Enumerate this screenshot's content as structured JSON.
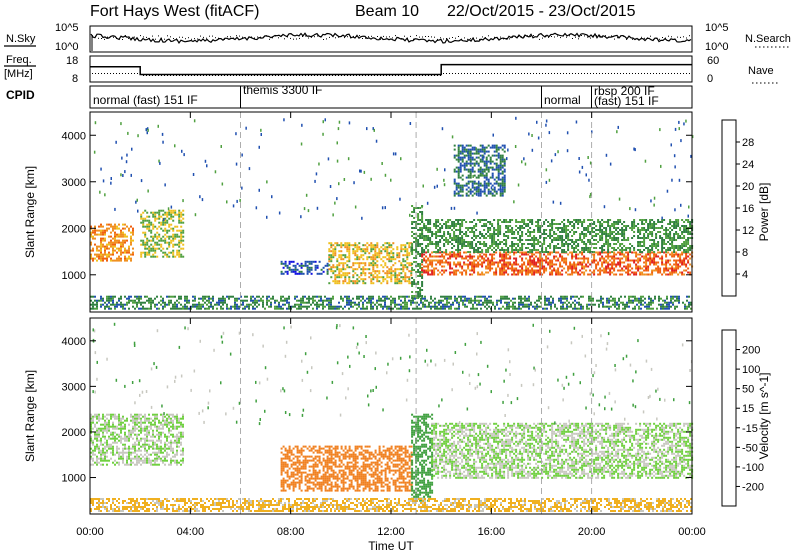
{
  "header": {
    "title": "Fort Hays West (fitACF)",
    "beam": "Beam 10",
    "dates": "22/Oct/2015 - 23/Oct/2015"
  },
  "top_panels": {
    "nsky_label": "N.Sky",
    "nsky_top": "10^5",
    "nsky_bottom": "10^0",
    "nsearch_label": "N.Search",
    "nsearch_top": "10^5",
    "nsearch_bottom": "10^0",
    "freq_label": "Freq.",
    "freq_unit": "[MHz]",
    "freq_top": "18",
    "freq_bottom": "8",
    "nave_label": "Nave",
    "nave_top": "60",
    "nave_bottom": "0",
    "cpid_label": "CPID"
  },
  "cpid_segments": [
    {
      "start_h": 0,
      "end_h": 6,
      "label": "normal (fast) 151 IF"
    },
    {
      "start_h": 6,
      "end_h": 18,
      "label": "themis 3300 IF"
    },
    {
      "start_h": 18,
      "end_h": 20,
      "label": "normal"
    },
    {
      "start_h": 20,
      "end_h": 24,
      "label": "rbsp 200 IF"
    },
    {
      "start_h": 20,
      "end_h": 24,
      "label": "(fast) 151 IF"
    }
  ],
  "axes": {
    "xlabel": "Time UT",
    "x_ticks": [
      "00:00",
      "04:00",
      "08:00",
      "12:00",
      "16:00",
      "20:00",
      "00:00"
    ],
    "x_tick_hours": [
      0,
      4,
      8,
      12,
      16,
      20,
      24
    ],
    "ylabel": "Slant Range [km]",
    "y_ticks": [
      1000,
      2000,
      3000,
      4000
    ],
    "ylim": [
      200,
      4500
    ],
    "xlim_hours": [
      0,
      24
    ]
  },
  "power_scale": {
    "label": "Power [dB]",
    "ticks": [
      "4",
      "8",
      "12",
      "16",
      "20",
      "24",
      "28"
    ],
    "colors": [
      "#1010e0",
      "#2050b0",
      "#308040",
      "#50a040",
      "#f0c020",
      "#f09020",
      "#f06010",
      "#e02020"
    ]
  },
  "velocity_scale": {
    "label": "Velocity [m s^-1]",
    "ticks": [
      "200",
      "100",
      "50",
      "15",
      "-15",
      "-50",
      "-100",
      "-200"
    ],
    "colors": [
      "#2030b0",
      "#207040",
      "#40a040",
      "#70d040",
      "#c8c8c0",
      "#f0b020",
      "#f08020",
      "#f04010",
      "#e01010"
    ]
  },
  "chart_data": {
    "type": "heatmap",
    "title": "Fort Hays West (fitACF)",
    "xlabel": "Time UT",
    "ylabel": "Slant Range [km]",
    "xlim_hours": [
      0,
      24
    ],
    "ylim_km": [
      200,
      4500
    ],
    "nsky_trace": {
      "hours": [
        0,
        6,
        12,
        13,
        18,
        24
      ],
      "level": "around 10^4"
    },
    "freq_mhz": [
      {
        "start_h": 0,
        "end_h": 2,
        "value": 14
      },
      {
        "start_h": 2,
        "end_h": 14,
        "value": 10.5
      },
      {
        "start_h": 14,
        "end_h": 24,
        "value": 15
      }
    ],
    "power_features": [
      {
        "start_h": 0,
        "end_h": 1.7,
        "range_start_km": 1300,
        "range_end_km": 2100,
        "power_db": 22
      },
      {
        "start_h": 2,
        "end_h": 3.7,
        "range_start_km": 1400,
        "range_end_km": 2400,
        "power_db": 16
      },
      {
        "start_h": 7.6,
        "end_h": 9.5,
        "range_start_km": 1000,
        "range_end_km": 1300,
        "power_db": 6
      },
      {
        "start_h": 9.5,
        "end_h": 12.8,
        "range_start_km": 800,
        "range_end_km": 1700,
        "power_db": 18
      },
      {
        "start_h": 12.8,
        "end_h": 13.2,
        "range_start_km": 500,
        "range_end_km": 2500,
        "power_db": 12
      },
      {
        "start_h": 13.2,
        "end_h": 24,
        "range_start_km": 1000,
        "range_end_km": 1500,
        "power_db": 26
      },
      {
        "start_h": 13.2,
        "end_h": 24,
        "range_start_km": 1500,
        "range_end_km": 2200,
        "power_db": 12
      },
      {
        "start_h": 14.5,
        "end_h": 16.5,
        "range_start_km": 2700,
        "range_end_km": 3800,
        "power_db": 8
      },
      {
        "start_h": 0,
        "end_h": 24,
        "range_start_km": 250,
        "range_end_km": 550,
        "power_db": 10
      }
    ],
    "velocity_features": [
      {
        "start_h": 0,
        "end_h": 3.7,
        "range_start_km": 1300,
        "range_end_km": 2400,
        "velocity_ms": 0
      },
      {
        "start_h": 7.6,
        "end_h": 12.8,
        "range_start_km": 700,
        "range_end_km": 1700,
        "velocity_ms": -70
      },
      {
        "start_h": 12.8,
        "end_h": 13.6,
        "range_start_km": 500,
        "range_end_km": 2400,
        "velocity_ms": 30
      },
      {
        "start_h": 13.6,
        "end_h": 24,
        "range_start_km": 1000,
        "range_end_km": 2200,
        "velocity_ms": 0
      },
      {
        "start_h": 0,
        "end_h": 24,
        "range_start_km": 250,
        "range_end_km": 550,
        "velocity_ms": -20
      }
    ]
  }
}
